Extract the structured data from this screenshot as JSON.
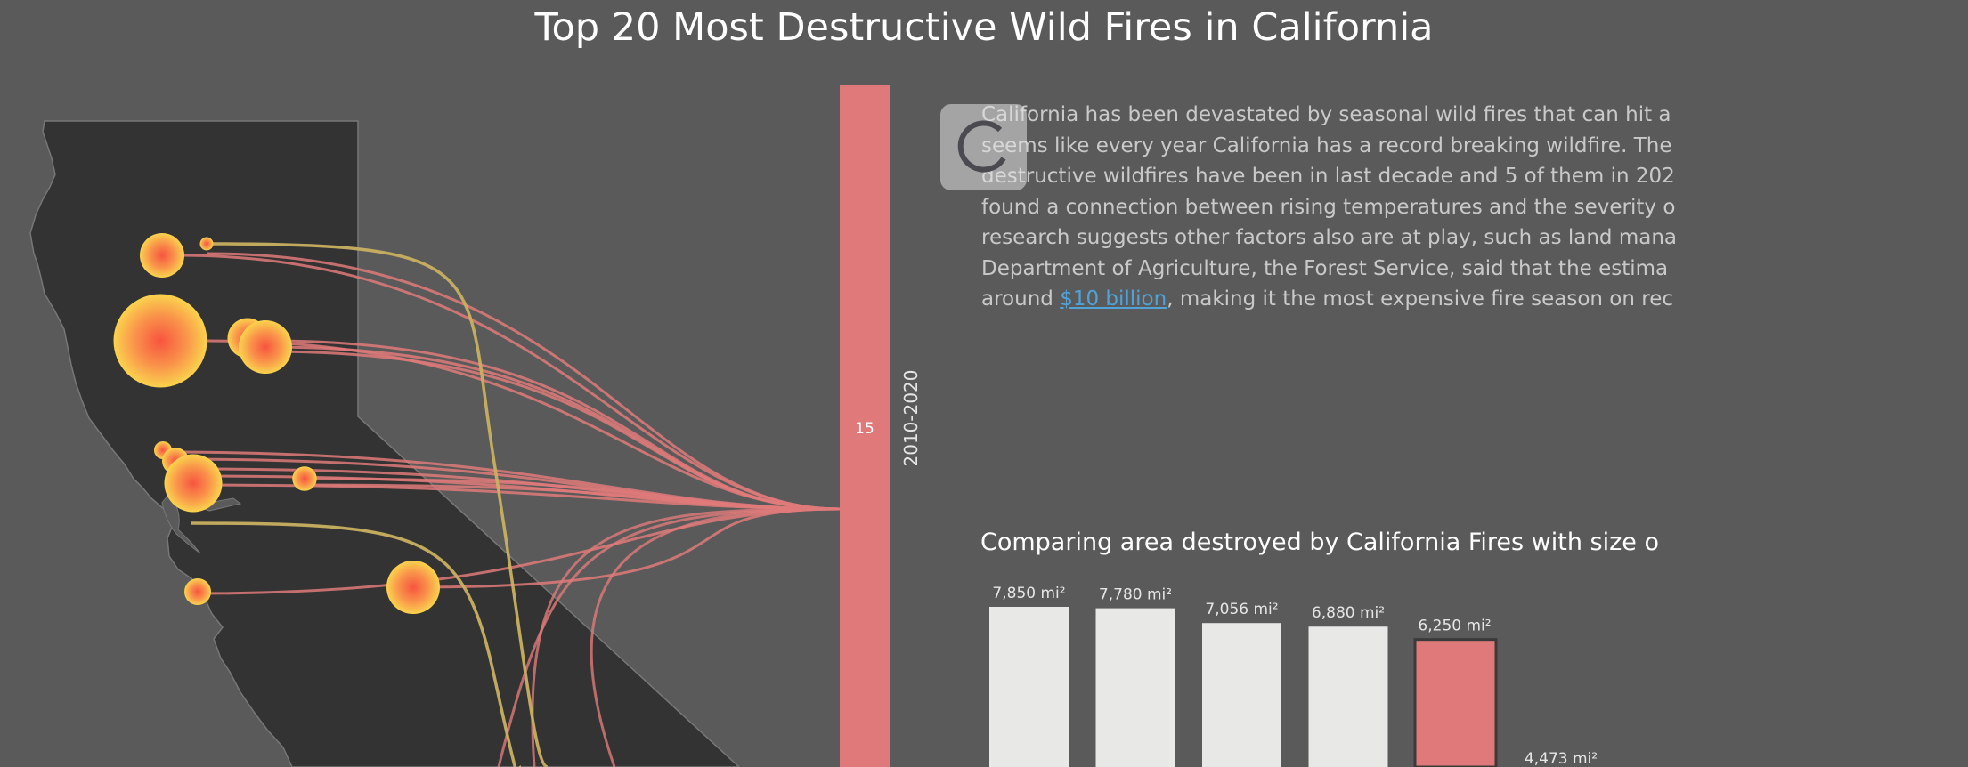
{
  "title": "Top 20 Most Destructive Wild Fires in California",
  "decade": {
    "label": "2010-2020",
    "count": "15"
  },
  "intro": {
    "lines": [
      "California has been devastated by seasonal wild fires that can hit a",
      "seems like every year California has a record breaking wildfire. The",
      "destructive wildfires have been in last decade and 5 of them in 202",
      "found a connection between rising temperatures and the severity o",
      "research suggests other factors also are at play, such as land mana",
      "Department of Agriculture, the Forest Service, said that the estima"
    ],
    "last_prefix": "around ",
    "link": "$10 billion",
    "last_suffix": ", making it the most expensive fire season on rec"
  },
  "compare_title": "Comparing area destroyed by California Fires with size o",
  "colors": {
    "background": "#5a5a5a",
    "state": "#333333",
    "pink": "#e07a7a",
    "yellow": "#c9b060",
    "bar": "#e8e8e6",
    "highlight": "#e07a7a"
  },
  "icons": {
    "loading": "spinner-icon"
  },
  "chart_data": [
    {
      "type": "bar",
      "title": "Comparing area destroyed by California Fires with size o",
      "unit": "mi²",
      "labels": [
        "7,850 mi²",
        "7,780 mi²",
        "7,056 mi²",
        "6,880 mi²",
        "6,250 mi²",
        "4,473 mi²"
      ],
      "values": [
        7850,
        7780,
        7056,
        6880,
        6250,
        4473
      ],
      "highlight_index": 4
    },
    {
      "type": "scatter",
      "title": "",
      "fires": [
        {
          "size": 1.0
        },
        {
          "size": 0.3
        },
        {
          "size": 2.1
        },
        {
          "size": 0.9
        },
        {
          "size": 1.2
        },
        {
          "size": 0.4
        },
        {
          "size": 0.6
        },
        {
          "size": 1.3
        },
        {
          "size": 0.55
        },
        {
          "size": 0.6
        },
        {
          "size": 1.2
        }
      ]
    }
  ]
}
